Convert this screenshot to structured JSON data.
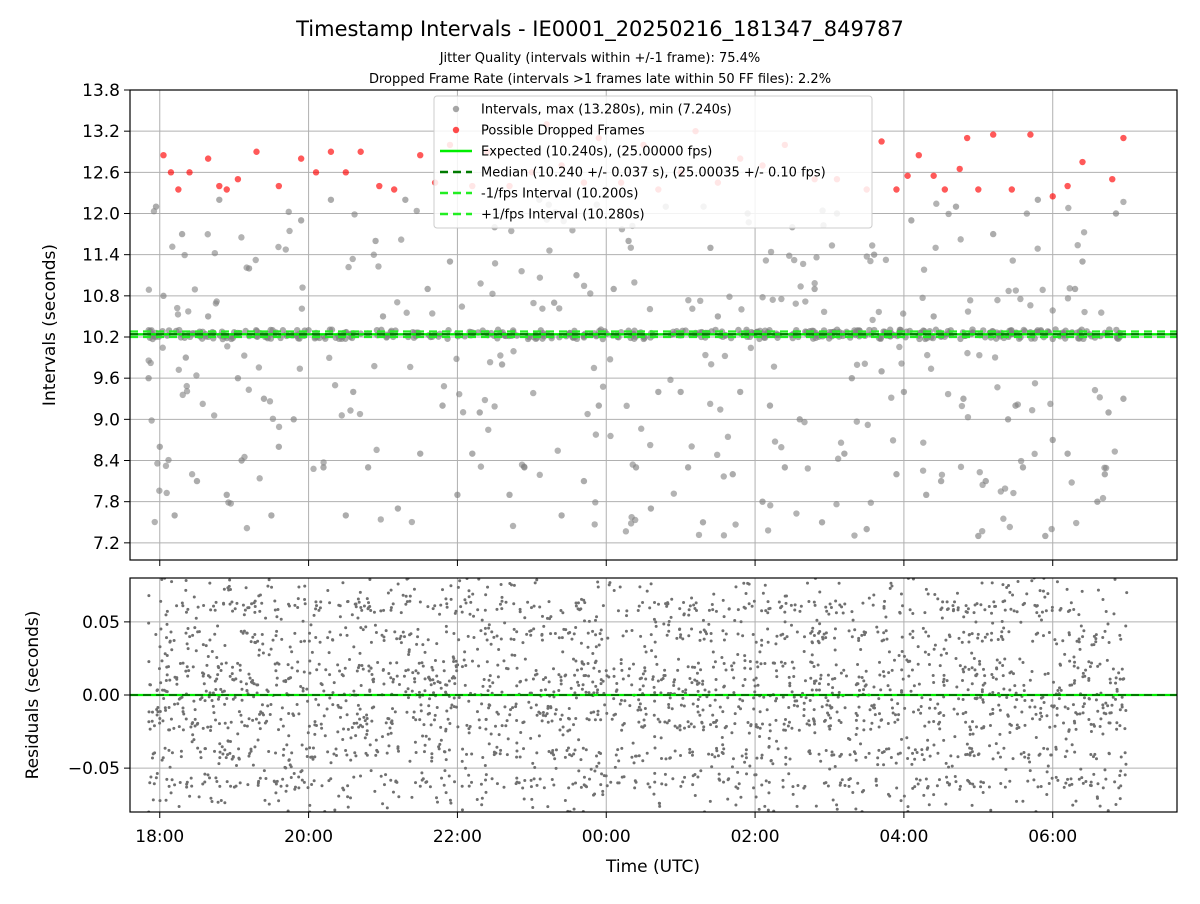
{
  "chart_data": {
    "title": "Timestamp Intervals - IE0001_20250216_181347_849787",
    "subtitle_lines": [
      "Jitter Quality (intervals within +/-1 frame): 75.4%",
      "Dropped Frame Rate (intervals >1 frames late within 50 FF files): 2.2%"
    ],
    "x_axis": {
      "label": "Time (UTC)",
      "range_hours": [
        -6.4,
        7.67
      ],
      "ticks": [
        {
          "value": -6,
          "label": "18:00"
        },
        {
          "value": -4,
          "label": "20:00"
        },
        {
          "value": -2,
          "label": "22:00"
        },
        {
          "value": 0,
          "label": "00:00"
        },
        {
          "value": 2,
          "label": "02:00"
        },
        {
          "value": 4,
          "label": "04:00"
        },
        {
          "value": 6,
          "label": "06:00"
        }
      ],
      "grid": true
    },
    "panels": [
      {
        "type": "scatter",
        "ylabel": "Intervals (seconds)",
        "ylim": [
          6.95,
          13.8
        ],
        "yticks": [
          7.2,
          7.8,
          8.4,
          9.0,
          9.6,
          10.2,
          10.8,
          11.4,
          12.0,
          12.6,
          13.2,
          13.8
        ],
        "ytick_labels": [
          "7.2",
          "7.8",
          "8.4",
          "9.0",
          "9.6",
          "10.2",
          "10.8",
          "11.4",
          "12.0",
          "12.6",
          "13.2",
          "13.8"
        ],
        "grid": true,
        "legend_position": "top-center",
        "legend": [
          {
            "label": "Intervals, max (13.280s), min (7.240s)",
            "kind": "marker",
            "color": "#808080"
          },
          {
            "label": "Possible Dropped Frames",
            "kind": "marker",
            "color": "#ff0000"
          },
          {
            "label": "Expected (10.240s), (25.00000 fps)",
            "kind": "line",
            "color": "#00ee00",
            "dash": ""
          },
          {
            "label": "Median (10.240 +/- 0.037 s), (25.00035 +/- 0.10 fps)",
            "kind": "line",
            "color": "#007a00",
            "dash": "8,5"
          },
          {
            "label": "-1/fps Interval (10.200s)",
            "kind": "line",
            "color": "#22ee22",
            "dash": "8,5"
          },
          {
            "label": "+1/fps Interval (10.280s)",
            "kind": "line",
            "color": "#22ee22",
            "dash": "8,5"
          }
        ],
        "reference_lines": {
          "expected": 10.24,
          "median": 10.24,
          "minus_one_frame": 10.2,
          "plus_one_frame": 10.28
        },
        "series": [
          {
            "name": "Intervals, max (13.280s), min (7.240s)",
            "color": "#808080",
            "x": [
              -6.1,
              -6.05,
              -5.9,
              -5.6,
              -5.3,
              -5.0,
              -4.7,
              -4.3,
              -3.9,
              -3.6,
              -3.3,
              -2.9,
              -2.6,
              -2.3,
              -1.9,
              -1.6,
              -1.2,
              -0.8,
              -0.5,
              -0.2,
              0.2,
              0.5,
              0.9,
              1.2,
              1.6,
              2.0,
              2.3,
              2.7,
              3.0,
              3.4,
              3.8,
              4.2,
              4.6,
              4.9,
              5.3,
              5.7,
              6.1,
              6.5,
              6.9,
              -6.05,
              -5.7,
              -5.2,
              -4.8,
              -4.1,
              -3.7,
              -3.1,
              -2.7,
              -2.1,
              -1.5,
              -0.9,
              -0.4,
              0.3,
              0.8,
              1.4,
              1.9,
              2.5,
              3.1,
              3.6,
              4.1,
              4.7,
              5.2,
              5.8,
              6.4,
              6.85,
              -6.0,
              -5.5,
              -4.9,
              -4.4,
              -3.8,
              -3.2,
              -2.5,
              -1.8,
              -1.1,
              -0.3,
              0.4,
              1.1,
              1.7,
              2.4,
              3.2,
              3.9,
              4.5,
              5.1,
              5.6,
              6.2,
              6.7,
              -5.8,
              -5.1,
              -4.5,
              -3.5,
              -2.8,
              -2.0,
              -1.3,
              -0.6,
              0.6,
              1.3,
              2.1,
              2.9,
              3.5,
              4.3,
              5.0,
              5.9,
              6.6,
              -5.95,
              -5.35,
              -4.6,
              -4.0,
              -3.4,
              -2.4,
              -1.7,
              -0.7,
              0.1,
              0.7,
              1.5,
              2.2,
              2.8,
              3.7,
              4.4,
              5.4,
              6.3,
              6.95,
              -6.15,
              -5.65,
              -4.95,
              -4.2,
              -3.0,
              -2.2,
              -1.4,
              -0.1,
              1.0,
              1.8,
              2.6,
              3.3,
              4.0,
              4.8,
              5.5,
              6.0,
              6.75
            ],
            "y": [
              10.24,
              10.26,
              10.22,
              10.25,
              10.23,
              10.27,
              10.21,
              10.24,
              10.26,
              10.22,
              10.25,
              10.23,
              10.27,
              10.24,
              10.21,
              10.26,
              10.22,
              10.25,
              10.24,
              10.23,
              10.27,
              10.21,
              10.24,
              10.26,
              10.22,
              10.25,
              10.23,
              10.24,
              10.27,
              10.21,
              10.26,
              10.22,
              10.25,
              10.24,
              10.23,
              10.27,
              10.21,
              10.24,
              10.26,
              12.1,
              11.7,
              12.2,
              11.2,
              11.9,
              12.2,
              11.6,
              12.2,
              11.3,
              11.8,
              12.2,
              11.1,
              11.6,
              12.1,
              11.5,
              12.0,
              11.8,
              12.0,
              11.4,
              11.9,
              12.1,
              11.7,
              12.2,
              11.3,
              12.0,
              8.6,
              8.1,
              8.4,
              8.6,
              8.3,
              8.3,
              8.5,
              8.5,
              8.3,
              8.1,
              8.3,
              8.3,
              8.2,
              8.3,
              8.5,
              8.2,
              8.1,
              8.1,
              8.3,
              8.5,
              8.2,
              7.6,
              7.9,
              7.6,
              7.6,
              7.7,
              7.9,
              7.9,
              7.6,
              7.7,
              7.5,
              7.8,
              7.5,
              7.4,
              7.9,
              7.3,
              7.3,
              7.8,
              10.8,
              10.5,
              9.3,
              10.3,
              9.4,
              10.9,
              9.1,
              10.7,
              10.9,
              9.4,
              10.5,
              9.2,
              10.9,
              9.7,
              10.5,
              9.0,
              10.9,
              9.3,
              9.6,
              9.9,
              9.6,
              9.0,
              10.5,
              9.2,
              9.8,
              9.2,
              9.4,
              9.4,
              9.0,
              9.6,
              9.4,
              9.3,
              9.2,
              8.7,
              9.1
            ]
          },
          {
            "name": "Possible Dropped Frames",
            "color": "#ff0000",
            "x": [
              -5.95,
              -5.85,
              -5.75,
              -5.6,
              -5.35,
              -5.2,
              -5.1,
              -4.95,
              -4.7,
              -4.4,
              -4.1,
              -3.9,
              -3.7,
              -3.5,
              -3.3,
              -3.05,
              -2.85,
              -2.5,
              -2.3,
              -2.1,
              -1.8,
              -1.6,
              -1.3,
              -1.0,
              -0.8,
              -0.6,
              -0.3,
              -0.1,
              0.2,
              0.5,
              0.7,
              1.0,
              1.2,
              1.5,
              1.8,
              2.1,
              2.4,
              2.8,
              3.1,
              3.5,
              3.7,
              3.9,
              4.05,
              4.2,
              4.4,
              4.55,
              4.75,
              4.85,
              5.0,
              5.2,
              5.45,
              5.7,
              6.0,
              6.2,
              6.4,
              6.8,
              6.95
            ],
            "y": [
              12.85,
              12.6,
              12.35,
              12.6,
              12.8,
              12.4,
              12.35,
              12.5,
              12.9,
              12.4,
              12.8,
              12.6,
              12.9,
              12.6,
              12.9,
              12.4,
              12.35,
              12.85,
              12.45,
              13.0,
              12.4,
              12.9,
              12.4,
              12.6,
              13.3,
              12.7,
              12.45,
              13.1,
              12.45,
              13.0,
              12.35,
              12.6,
              13.2,
              12.45,
              12.8,
              12.7,
              13.0,
              12.5,
              12.5,
              12.35,
              13.05,
              12.35,
              12.55,
              12.85,
              12.55,
              12.35,
              12.65,
              13.1,
              12.35,
              13.15,
              12.35,
              13.15,
              12.25,
              12.4,
              12.75,
              12.5,
              13.1
            ]
          }
        ]
      },
      {
        "type": "scatter",
        "ylabel": "Residuals (seconds)",
        "ylim": [
          -0.08,
          0.08
        ],
        "yticks": [
          -0.05,
          0.0,
          0.05
        ],
        "ytick_labels": [
          "−0.05",
          "0.00",
          "0.05"
        ],
        "grid": true,
        "series": [
          {
            "name": "",
            "color": "#707070",
            "levels": [
              -0.06,
              -0.04,
              -0.02,
              -0.01,
              0.0,
              0.01,
              0.02,
              0.04,
              0.06,
              -0.075,
              0.075
            ],
            "x_range": [
              -6.15,
              7.0
            ]
          }
        ],
        "reference_lines": {
          "zero": 0.0
        }
      }
    ]
  }
}
